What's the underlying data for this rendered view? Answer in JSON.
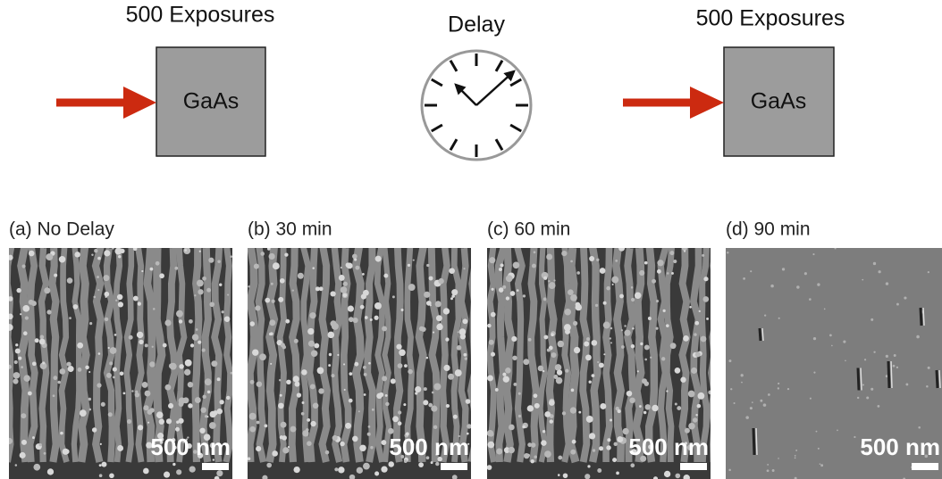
{
  "top": {
    "left": {
      "title": "500 Exposures",
      "sample": "GaAs"
    },
    "delay": {
      "title": "Delay"
    },
    "right": {
      "title": "500 Exposures",
      "sample": "GaAs"
    }
  },
  "panels": [
    {
      "label": "(a) No Delay",
      "scale_bar": "500 nm"
    },
    {
      "label": "(b) 30 min",
      "scale_bar": "500 nm"
    },
    {
      "label": "(c) 60 min",
      "scale_bar": "500 nm"
    },
    {
      "label": "(d) 90 min",
      "scale_bar": "500 nm"
    }
  ]
}
